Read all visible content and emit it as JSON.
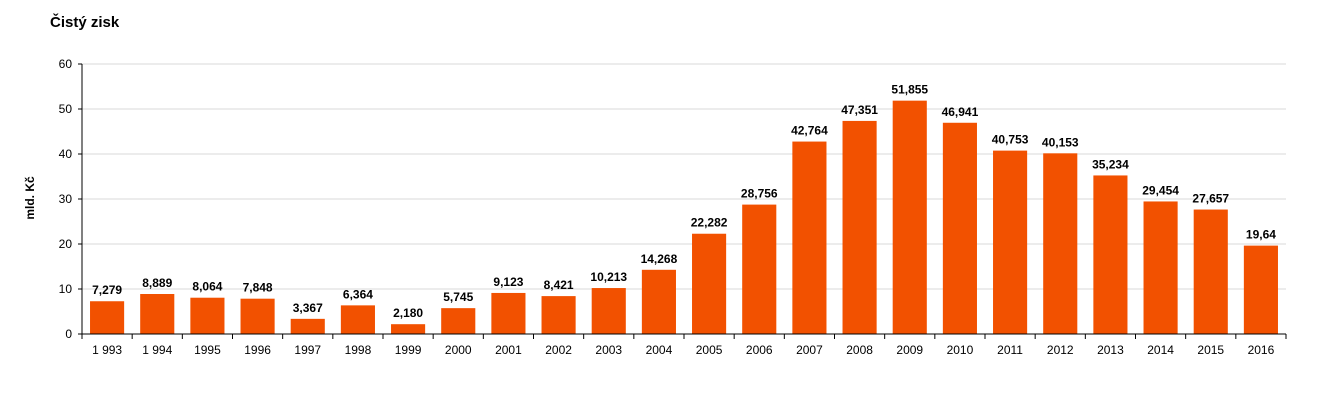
{
  "chart_data": {
    "type": "bar",
    "title": "Čistý zisk",
    "xlabel": "",
    "ylabel": "mld. Kč",
    "ylim": [
      0,
      60
    ],
    "yticks": [
      0,
      10,
      20,
      30,
      40,
      50,
      60
    ],
    "grid": true,
    "legend": "none",
    "colors": {
      "bar": "#f25100",
      "grid": "#d9d9d9",
      "axis": "#000000"
    },
    "categories": [
      "1 993",
      "1 994",
      "1995",
      "1996",
      "1997",
      "1998",
      "1999",
      "2000",
      "2001",
      "2002",
      "2003",
      "2004",
      "2005",
      "2006",
      "2007",
      "2008",
      "2009",
      "2010",
      "2011",
      "2012",
      "2013",
      "2014",
      "2015",
      "2016"
    ],
    "values": [
      7.279,
      8.889,
      8.064,
      7.848,
      3.367,
      6.364,
      2.18,
      5.745,
      9.123,
      8.421,
      10.213,
      14.268,
      22.282,
      28.756,
      42.764,
      47.351,
      51.855,
      46.941,
      40.753,
      40.153,
      35.234,
      29.454,
      27.657,
      19.64
    ],
    "data_labels": [
      "7,279",
      "8,889",
      "8,064",
      "7,848",
      "3,367",
      "6,364",
      "2,180",
      "5,745",
      "9,123",
      "8,421",
      "10,213",
      "14,268",
      "22,282",
      "28,756",
      "42,764",
      "47,351",
      "51,855",
      "46,941",
      "40,753",
      "40,153",
      "35,234",
      "29,454",
      "27,657",
      "19,64"
    ]
  }
}
